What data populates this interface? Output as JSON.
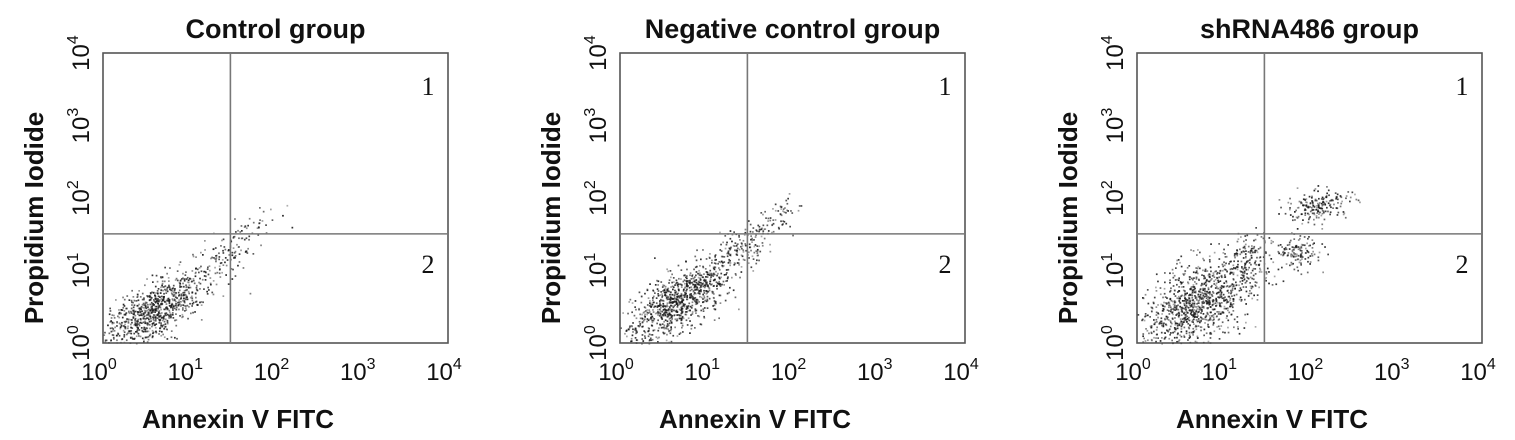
{
  "figure": {
    "panels": [
      {
        "title": "Control group",
        "xlabel": "Annexin V  FITC",
        "ylabel": "Propidium Iodide",
        "quadrant_labels": [
          "1",
          "2"
        ]
      },
      {
        "title": "Negative control group",
        "xlabel": "Annexin V  FITC",
        "ylabel": "Propidium Iodide",
        "quadrant_labels": [
          "1",
          "2"
        ]
      },
      {
        "title": "shRNA486 group",
        "xlabel": "Annexin V  FITC",
        "ylabel": "Propidium Iodide",
        "quadrant_labels": [
          "1",
          "2"
        ]
      }
    ]
  },
  "chart_data": [
    {
      "type": "scatter",
      "title": "Control group",
      "xlabel": "Annexin V  FITC",
      "ylabel": "Propidium Iodide",
      "xscale": "log",
      "yscale": "log",
      "xlim": [
        1,
        10000
      ],
      "ylim": [
        1,
        10000
      ],
      "x_ticks": [
        {
          "base": "10",
          "exp": "0"
        },
        {
          "base": "10",
          "exp": "1"
        },
        {
          "base": "10",
          "exp": "2"
        },
        {
          "base": "10",
          "exp": "3"
        },
        {
          "base": "10",
          "exp": "4"
        }
      ],
      "y_ticks": [
        {
          "base": "10",
          "exp": "0"
        },
        {
          "base": "10",
          "exp": "1"
        },
        {
          "base": "10",
          "exp": "2"
        },
        {
          "base": "10",
          "exp": "3"
        },
        {
          "base": "10",
          "exp": "4"
        }
      ],
      "gate_x": 30,
      "gate_y": 32,
      "quadrant_labels": [
        {
          "label": "1",
          "position": "upper-right"
        },
        {
          "label": "2",
          "position": "lower-right"
        }
      ],
      "grid": false,
      "legend": "none",
      "populations": [
        {
          "center_x": 4,
          "center_y": 3,
          "spread_x": 0.32,
          "spread_y": 0.28,
          "correlation": 0.72,
          "density": 900
        },
        {
          "center_x": 25,
          "center_y": 18,
          "spread_x": 0.2,
          "spread_y": 0.2,
          "correlation": 0.7,
          "density": 90
        },
        {
          "center_x": 65,
          "center_y": 50,
          "spread_x": 0.16,
          "spread_y": 0.12,
          "correlation": 0.5,
          "density": 25
        }
      ]
    },
    {
      "type": "scatter",
      "title": "Negative control group",
      "xlabel": "Annexin V  FITC",
      "ylabel": "Propidium Iodide",
      "xscale": "log",
      "yscale": "log",
      "xlim": [
        1,
        10000
      ],
      "ylim": [
        1,
        10000
      ],
      "x_ticks": [
        {
          "base": "10",
          "exp": "0"
        },
        {
          "base": "10",
          "exp": "1"
        },
        {
          "base": "10",
          "exp": "2"
        },
        {
          "base": "10",
          "exp": "3"
        },
        {
          "base": "10",
          "exp": "4"
        }
      ],
      "y_ticks": [
        {
          "base": "10",
          "exp": "0"
        },
        {
          "base": "10",
          "exp": "1"
        },
        {
          "base": "10",
          "exp": "2"
        },
        {
          "base": "10",
          "exp": "3"
        },
        {
          "base": "10",
          "exp": "4"
        }
      ],
      "gate_x": 30,
      "gate_y": 32,
      "quadrant_labels": [
        {
          "label": "1",
          "position": "upper-right"
        },
        {
          "label": "2",
          "position": "lower-right"
        }
      ],
      "grid": false,
      "legend": "none",
      "populations": [
        {
          "center_x": 5,
          "center_y": 4,
          "spread_x": 0.34,
          "spread_y": 0.32,
          "correlation": 0.75,
          "density": 1000
        },
        {
          "center_x": 28,
          "center_y": 25,
          "spread_x": 0.22,
          "spread_y": 0.2,
          "correlation": 0.75,
          "density": 120
        },
        {
          "center_x": 70,
          "center_y": 60,
          "spread_x": 0.15,
          "spread_y": 0.14,
          "correlation": 0.6,
          "density": 40
        }
      ]
    },
    {
      "type": "scatter",
      "title": "shRNA486 group",
      "xlabel": "Annexin V  FITC",
      "ylabel": "Propidium Iodide",
      "xscale": "log",
      "yscale": "log",
      "xlim": [
        1,
        10000
      ],
      "ylim": [
        1,
        10000
      ],
      "x_ticks": [
        {
          "base": "10",
          "exp": "0"
        },
        {
          "base": "10",
          "exp": "1"
        },
        {
          "base": "10",
          "exp": "2"
        },
        {
          "base": "10",
          "exp": "3"
        },
        {
          "base": "10",
          "exp": "4"
        }
      ],
      "y_ticks": [
        {
          "base": "10",
          "exp": "0"
        },
        {
          "base": "10",
          "exp": "1"
        },
        {
          "base": "10",
          "exp": "2"
        },
        {
          "base": "10",
          "exp": "3"
        },
        {
          "base": "10",
          "exp": "4"
        }
      ],
      "gate_x": 30,
      "gate_y": 32,
      "quadrant_labels": [
        {
          "label": "1",
          "position": "upper-right"
        },
        {
          "label": "2",
          "position": "lower-right"
        }
      ],
      "grid": false,
      "legend": "none",
      "populations": [
        {
          "center_x": 5,
          "center_y": 3.5,
          "spread_x": 0.34,
          "spread_y": 0.34,
          "correlation": 0.55,
          "density": 1100
        },
        {
          "center_x": 18,
          "center_y": 15,
          "spread_x": 0.14,
          "spread_y": 0.2,
          "correlation": 0.3,
          "density": 120
        },
        {
          "center_x": 70,
          "center_y": 18,
          "spread_x": 0.13,
          "spread_y": 0.12,
          "correlation": 0.1,
          "density": 130
        },
        {
          "center_x": 130,
          "center_y": 80,
          "spread_x": 0.17,
          "spread_y": 0.12,
          "correlation": 0.2,
          "density": 200
        }
      ]
    }
  ]
}
